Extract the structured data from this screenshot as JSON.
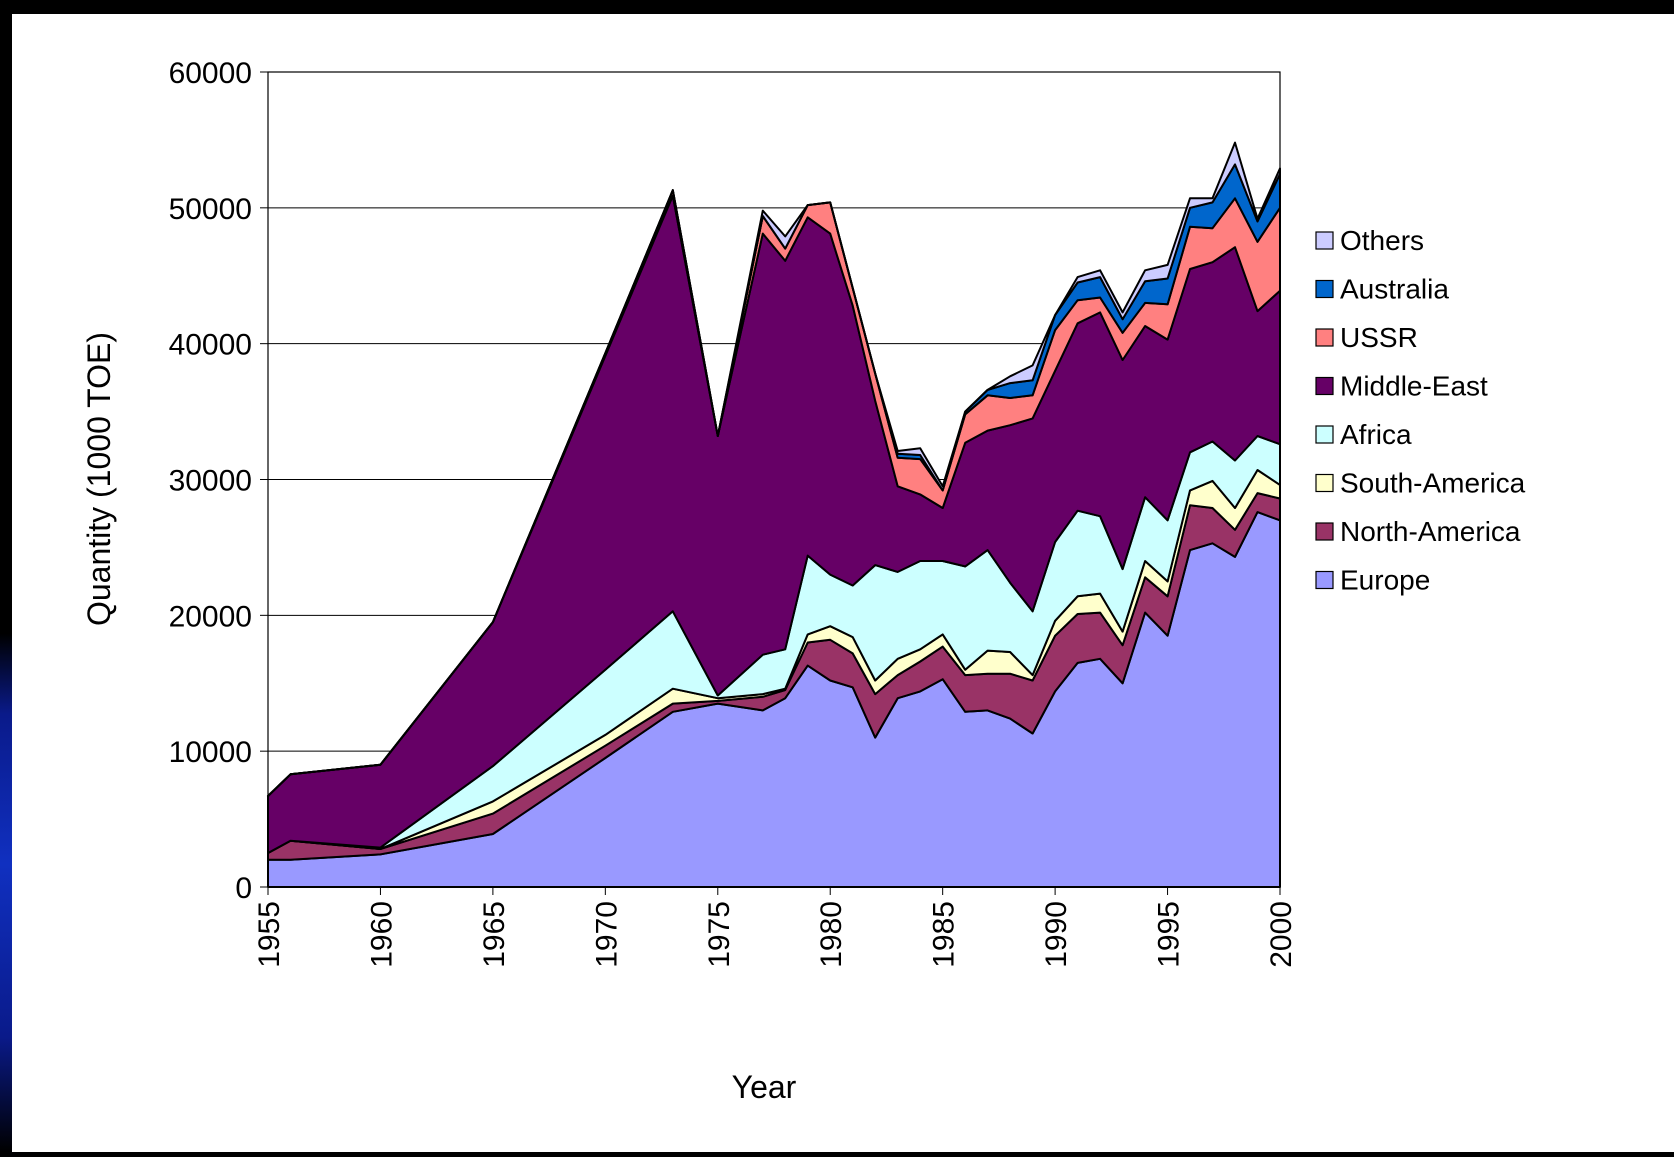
{
  "chart_data": {
    "type": "area",
    "stacked": true,
    "title": "",
    "xlabel": "Year",
    "ylabel": "Quantity (1000 TOE)",
    "xlim": [
      1955,
      2000
    ],
    "ylim": [
      0,
      60000
    ],
    "x_ticks": [
      "1955",
      "1960",
      "1965",
      "1970",
      "1975",
      "1980",
      "1985",
      "1990",
      "1995",
      "2000"
    ],
    "y_ticks": [
      "0",
      "10000",
      "20000",
      "30000",
      "40000",
      "50000",
      "60000"
    ],
    "grid": "horizontal major gridlines",
    "legend_position": "right",
    "x": [
      1955,
      1956,
      1960,
      1965,
      1970,
      1973,
      1975,
      1977,
      1978,
      1979,
      1980,
      1981,
      1982,
      1983,
      1984,
      1985,
      1986,
      1987,
      1988,
      1989,
      1990,
      1991,
      1992,
      1993,
      1994,
      1995,
      1996,
      1997,
      1998,
      1999,
      2000
    ],
    "series": [
      {
        "name": "Europe",
        "color": "#9999ff",
        "values": [
          2000,
          2000,
          2400,
          3900,
          9500,
          12900,
          13500,
          13000,
          13900,
          16300,
          15200,
          14700,
          11000,
          13900,
          14400,
          15300,
          12900,
          13000,
          12400,
          11300,
          14400,
          16500,
          16800,
          15000,
          20200,
          18500,
          24800,
          25300,
          24300,
          27600,
          27000
        ]
      },
      {
        "name": "North-America",
        "color": "#993366",
        "values": [
          500,
          1400,
          400,
          1500,
          900,
          600,
          200,
          1000,
          600,
          1700,
          3000,
          2500,
          3200,
          1700,
          2200,
          2400,
          2700,
          2700,
          3300,
          3900,
          4100,
          3600,
          3400,
          2800,
          2600,
          2900,
          3300,
          2600,
          2000,
          1400,
          1600
        ]
      },
      {
        "name": "South-America",
        "color": "#ffffcc",
        "values": [
          0,
          0,
          0,
          900,
          800,
          1100,
          200,
          200,
          100,
          600,
          1000,
          1200,
          1000,
          1200,
          900,
          900,
          400,
          1700,
          1600,
          400,
          1100,
          1300,
          1400,
          1000,
          1200,
          1100,
          1100,
          2000,
          1600,
          1700,
          1000
        ]
      },
      {
        "name": "Africa",
        "color": "#ccffff",
        "values": [
          0,
          0,
          100,
          2600,
          4800,
          5700,
          200,
          2900,
          2900,
          5800,
          3800,
          3800,
          8500,
          6400,
          6500,
          5400,
          7600,
          7400,
          5100,
          4700,
          5800,
          6300,
          5700,
          4600,
          4700,
          4500,
          2800,
          2900,
          3500,
          2500,
          3000
        ]
      },
      {
        "name": "Middle-East",
        "color": "#660066",
        "values": [
          4200,
          4900,
          6100,
          10600,
          23100,
          30600,
          19100,
          31000,
          28600,
          24900,
          25100,
          20600,
          12100,
          6300,
          4900,
          3900,
          9100,
          8800,
          11600,
          14200,
          12600,
          13800,
          15000,
          15400,
          12600,
          13300,
          13500,
          13200,
          15700,
          9200,
          11300
        ]
      },
      {
        "name": "USSR",
        "color": "#ff8080",
        "values": [
          0,
          0,
          0,
          0,
          200,
          400,
          0,
          1300,
          900,
          900,
          2300,
          1300,
          2000,
          2100,
          2600,
          1300,
          2100,
          2600,
          2000,
          1700,
          3000,
          1700,
          1100,
          2000,
          1700,
          2600,
          3100,
          2500,
          3600,
          5100,
          6100
        ]
      },
      {
        "name": "Australia",
        "color": "#0066cc",
        "values": [
          0,
          0,
          0,
          0,
          0,
          0,
          0,
          0,
          0,
          0,
          0,
          0,
          0,
          300,
          300,
          0,
          200,
          400,
          1100,
          1100,
          1100,
          1300,
          1500,
          1000,
          1600,
          1900,
          1400,
          1900,
          2500,
          1500,
          2500
        ]
      },
      {
        "name": "Others",
        "color": "#ccccff",
        "values": [
          0,
          0,
          0,
          0,
          0,
          0,
          0,
          400,
          900,
          0,
          0,
          0,
          0,
          200,
          500,
          300,
          0,
          0,
          500,
          1100,
          0,
          400,
          500,
          500,
          800,
          1000,
          700,
          300,
          1600,
          200,
          400
        ]
      }
    ]
  }
}
